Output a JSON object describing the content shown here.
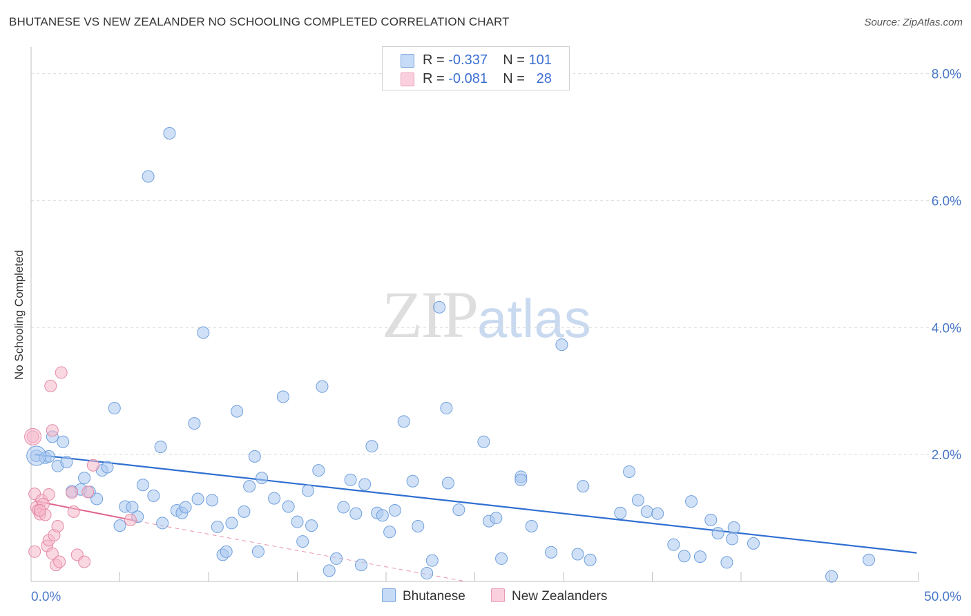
{
  "header": {
    "title": "BHUTANESE VS NEW ZEALANDER NO SCHOOLING COMPLETED CORRELATION CHART",
    "source": "Source: ZipAtlas.com"
  },
  "watermark": {
    "zip": "ZIP",
    "atlas": "atlas"
  },
  "legend": {
    "rows": [
      {
        "r_label": "R = ",
        "r_value": "-0.337",
        "n_label": "N = ",
        "n_value": "101",
        "color": "#a9c8f0"
      },
      {
        "r_label": "R = ",
        "r_value": "-0.081",
        "n_label": "N = ",
        "n_value": "28",
        "color": "#f5b8cb"
      }
    ]
  },
  "chart_data": {
    "type": "scatter",
    "title": "BHUTANESE VS NEW ZEALANDER NO SCHOOLING COMPLETED CORRELATION CHART",
    "xlabel": "",
    "ylabel": "No Schooling Completed",
    "xlim": [
      0,
      50
    ],
    "ylim": [
      0,
      8.3
    ],
    "x_tick_labels": [
      "0.0%",
      "50.0%"
    ],
    "y_ticks": [
      2.0,
      4.0,
      6.0,
      8.0
    ],
    "y_tick_labels": [
      "2.0%",
      "4.0%",
      "6.0%",
      "8.0%"
    ],
    "grid": "horizontal dashed",
    "legend_placement": "top-center",
    "series": [
      {
        "name": "Bhutanese",
        "color": "#a9c8f0",
        "stroke": "#6f9fdc",
        "trend": {
          "x": [
            0.2,
            49.9
          ],
          "y": [
            2.0,
            0.45
          ],
          "color": "#2f6fd1",
          "style": "solid"
        },
        "points": [
          [
            0.3,
            1.98
          ],
          [
            0.8,
            1.95
          ],
          [
            1.0,
            1.97
          ],
          [
            1.2,
            2.28
          ],
          [
            1.5,
            1.82
          ],
          [
            1.8,
            2.2
          ],
          [
            2.0,
            1.88
          ],
          [
            2.3,
            1.42
          ],
          [
            2.8,
            1.45
          ],
          [
            3.0,
            1.63
          ],
          [
            3.3,
            1.41
          ],
          [
            3.7,
            1.3
          ],
          [
            4.0,
            1.75
          ],
          [
            4.3,
            1.8
          ],
          [
            4.7,
            2.73
          ],
          [
            5.0,
            0.88
          ],
          [
            5.3,
            1.18
          ],
          [
            5.7,
            1.17
          ],
          [
            6.0,
            1.02
          ],
          [
            6.3,
            1.52
          ],
          [
            6.6,
            6.38
          ],
          [
            6.9,
            1.35
          ],
          [
            7.3,
            2.12
          ],
          [
            7.4,
            0.92
          ],
          [
            7.8,
            7.06
          ],
          [
            8.2,
            1.12
          ],
          [
            8.5,
            1.08
          ],
          [
            8.7,
            1.17
          ],
          [
            9.2,
            2.49
          ],
          [
            9.4,
            1.3
          ],
          [
            9.7,
            3.92
          ],
          [
            10.2,
            1.28
          ],
          [
            10.5,
            0.86
          ],
          [
            10.8,
            0.42
          ],
          [
            11.0,
            0.47
          ],
          [
            11.3,
            0.92
          ],
          [
            11.6,
            2.68
          ],
          [
            12.0,
            1.1
          ],
          [
            12.3,
            1.5
          ],
          [
            12.6,
            1.97
          ],
          [
            12.8,
            0.47
          ],
          [
            13.0,
            1.63
          ],
          [
            13.7,
            1.31
          ],
          [
            14.2,
            2.91
          ],
          [
            14.5,
            1.18
          ],
          [
            15.0,
            0.94
          ],
          [
            15.3,
            0.63
          ],
          [
            15.6,
            1.43
          ],
          [
            15.8,
            0.88
          ],
          [
            16.2,
            1.75
          ],
          [
            16.4,
            3.07
          ],
          [
            16.8,
            0.17
          ],
          [
            17.2,
            0.36
          ],
          [
            17.6,
            1.17
          ],
          [
            18.0,
            1.6
          ],
          [
            18.3,
            1.07
          ],
          [
            18.6,
            0.26
          ],
          [
            18.8,
            1.53
          ],
          [
            19.2,
            2.13
          ],
          [
            19.5,
            1.08
          ],
          [
            19.8,
            1.04
          ],
          [
            20.2,
            0.78
          ],
          [
            20.5,
            1.12
          ],
          [
            21.0,
            2.52
          ],
          [
            21.5,
            1.58
          ],
          [
            21.8,
            0.87
          ],
          [
            22.3,
            0.13
          ],
          [
            22.6,
            0.33
          ],
          [
            23.0,
            4.32
          ],
          [
            23.5,
            1.55
          ],
          [
            23.4,
            2.73
          ],
          [
            24.1,
            1.13
          ],
          [
            25.5,
            2.2
          ],
          [
            25.8,
            0.95
          ],
          [
            26.2,
            1.0
          ],
          [
            26.5,
            0.36
          ],
          [
            27.6,
            1.65
          ],
          [
            28.2,
            0.87
          ],
          [
            29.3,
            0.46
          ],
          [
            29.9,
            3.73
          ],
          [
            30.8,
            0.43
          ],
          [
            31.1,
            1.5
          ],
          [
            31.5,
            0.34
          ],
          [
            33.2,
            1.08
          ],
          [
            33.7,
            1.73
          ],
          [
            34.2,
            1.28
          ],
          [
            34.7,
            1.1
          ],
          [
            35.3,
            1.07
          ],
          [
            36.2,
            0.58
          ],
          [
            36.8,
            0.4
          ],
          [
            37.2,
            1.26
          ],
          [
            37.7,
            0.39
          ],
          [
            38.3,
            0.97
          ],
          [
            38.7,
            0.76
          ],
          [
            39.2,
            0.3
          ],
          [
            39.5,
            0.67
          ],
          [
            39.6,
            0.85
          ],
          [
            40.7,
            0.6
          ],
          [
            45.1,
            0.08
          ],
          [
            47.2,
            0.34
          ],
          [
            27.6,
            1.6
          ]
        ]
      },
      {
        "name": "New Zealanders",
        "color": "#f5b8cb",
        "stroke": "#e48ba7",
        "trend": {
          "x": [
            0.2,
            6.0
          ],
          "y": [
            1.27,
            0.95
          ],
          "color": "#e0648c",
          "style": "solid",
          "extension": {
            "x": [
              6.0,
              24.5
            ],
            "y": [
              0.95,
              0.0
            ],
            "style": "dashed"
          }
        },
        "points": [
          [
            0.1,
            2.28
          ],
          [
            0.2,
            1.38
          ],
          [
            0.3,
            1.17
          ],
          [
            0.4,
            1.12
          ],
          [
            0.5,
            1.06
          ],
          [
            0.6,
            1.28
          ],
          [
            0.7,
            1.22
          ],
          [
            0.8,
            1.05
          ],
          [
            0.9,
            0.56
          ],
          [
            1.0,
            0.65
          ],
          [
            1.0,
            1.37
          ],
          [
            1.1,
            3.08
          ],
          [
            1.2,
            0.44
          ],
          [
            1.2,
            2.38
          ],
          [
            1.3,
            0.73
          ],
          [
            1.4,
            0.26
          ],
          [
            1.5,
            0.87
          ],
          [
            1.6,
            0.31
          ],
          [
            1.7,
            3.29
          ],
          [
            2.3,
            1.4
          ],
          [
            2.4,
            1.1
          ],
          [
            2.6,
            0.42
          ],
          [
            3.0,
            0.31
          ],
          [
            3.2,
            1.41
          ],
          [
            3.5,
            1.83
          ],
          [
            5.6,
            0.97
          ],
          [
            0.2,
            0.47
          ],
          [
            0.5,
            1.12
          ]
        ]
      }
    ]
  },
  "bottom_legend": [
    {
      "label": "Bhutanese",
      "color": "#a9c8f0"
    },
    {
      "label": "New Zealanders",
      "color": "#f5b8cb"
    }
  ]
}
